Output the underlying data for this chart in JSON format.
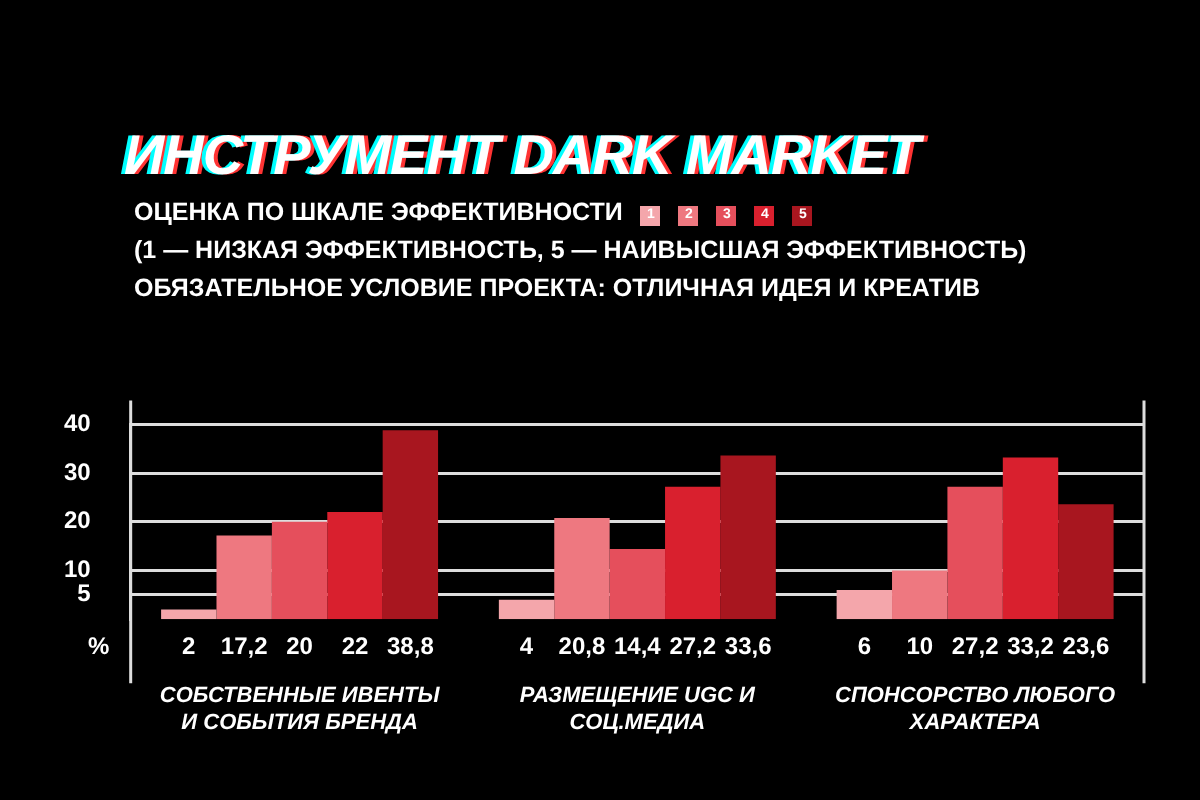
{
  "chart_data": {
    "type": "bar",
    "title": "ИНСТРУМЕНТ DARK MARKET",
    "subtitle": "ОЦЕНКА ПО ШКАЛЕ ЭФФЕКТИВНОСТИ",
    "annotations": [
      "(1 — НИЗКАЯ ЭФФЕКТИВНОСТЬ, 5 — НАИВЫСШАЯ ЭФФЕКТИВНОСТЬ)",
      "ОБЯЗАТЕЛЬНОЕ УСЛОВИЕ ПРОЕКТА: ОТЛИЧНАЯ ИДЕЯ И КРЕАТИВ"
    ],
    "ylabel": "%",
    "categories": [
      "СОБСТВЕННЫЕ ИВЕНТЫ И СОБЫТИЯ БРЕНДА",
      "РАЗМЕЩЕНИЕ UGC И СОЦ.МЕДИА",
      "СПОНСОРСТВО ЛЮБОГО ХАРАКТЕРА"
    ],
    "series": [
      {
        "name": "1",
        "color": "#f4a6ab",
        "values": [
          2,
          4,
          6
        ],
        "value_labels": [
          "2",
          "4",
          "6"
        ]
      },
      {
        "name": "2",
        "color": "#ee7880",
        "values": [
          17.2,
          20.8,
          10
        ],
        "value_labels": [
          "17,2",
          "20,8",
          "10"
        ]
      },
      {
        "name": "3",
        "color": "#e54f5c",
        "values": [
          20,
          14.4,
          27.2
        ],
        "value_labels": [
          "20",
          "14,4",
          "27,2"
        ]
      },
      {
        "name": "4",
        "color": "#d9202e",
        "values": [
          22,
          27.2,
          33.2
        ],
        "value_labels": [
          "22",
          "27,2",
          "33,2"
        ]
      },
      {
        "name": "5",
        "color": "#a8161f",
        "values": [
          38.8,
          33.6,
          23.6
        ],
        "value_labels": [
          "38,8",
          "33,6",
          "23,6"
        ]
      }
    ],
    "ylim": [
      0,
      40
    ],
    "yticks": [
      5,
      10,
      20,
      30,
      40
    ],
    "grid": "y",
    "legend": "top"
  }
}
